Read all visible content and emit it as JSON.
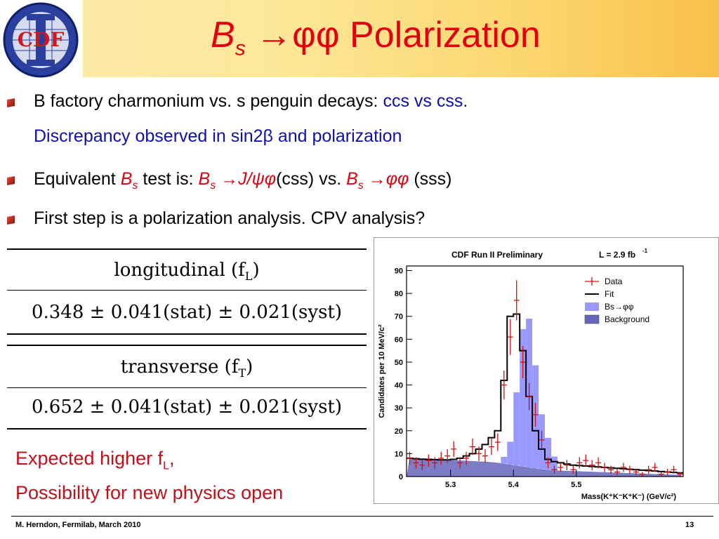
{
  "slide": {
    "title": {
      "B": "B",
      "sub": "s",
      "arrow": "→",
      "phiphi": "φφ",
      "word": "Polarization"
    },
    "bullets": [
      {
        "main": "B factory charmonium vs. s penguin decays: ",
        "highlight": "ccs vs css.",
        "line2": "Discrepancy observed in sin2β and polarization"
      },
      {
        "pre": "Equivalent ",
        "B1": "B",
        "s1": "s",
        "mid": " test is: ",
        "B2": "B",
        "s2": "s",
        "decay1": " →J/ψφ",
        "css": "(css)  vs. ",
        "B3": "B",
        "s3": "s",
        "decay2": " →φφ",
        "sss": " (sss)"
      },
      {
        "main": "First step is a polarization analysis.  CPV analysis?"
      }
    ],
    "tables": [
      {
        "header": "longitudinal (f",
        "header_sub": "L",
        "header_close": ")",
        "value": "0.348 ± 0.041(stat) ± 0.021(syst)"
      },
      {
        "header": "transverse (f",
        "header_sub": "T",
        "header_close": ")",
        "value": "0.652 ± 0.041(stat) ± 0.021(syst)"
      }
    ],
    "conclusion": {
      "line1": "Expected higher f",
      "line1_sub": "L",
      "line1_end": ",",
      "line2": "Possibility for new physics open"
    },
    "footer": {
      "left": "M. Herndon,  Fermilab,  March 2010",
      "page": "13"
    },
    "logo_text": "CDF"
  },
  "chart_data": {
    "type": "histogram",
    "title": "CDF Run II Preliminary",
    "lumi": "L = 2.9 fb",
    "lumi_sup": "-1",
    "xlabel": "Mass(K⁺K⁻K⁺K⁻) (GeV/c²)",
    "ylabel": "Candidates per 10 MeV/c²",
    "xlim": [
      5.23,
      5.67
    ],
    "ylim": [
      0,
      92
    ],
    "xticks": [
      "5.3",
      "5.4",
      "5.5"
    ],
    "yticks": [
      "0",
      "10",
      "20",
      "30",
      "40",
      "50",
      "60",
      "70",
      "80",
      "90"
    ],
    "legend": [
      "Data",
      "Fit",
      "Bs→φφ",
      "Background"
    ],
    "legend_placement": "top-right",
    "bin_edges": [
      5.23,
      5.24,
      5.25,
      5.26,
      5.27,
      5.28,
      5.29,
      5.3,
      5.31,
      5.32,
      5.33,
      5.34,
      5.35,
      5.36,
      5.37,
      5.38,
      5.39,
      5.4,
      5.41,
      5.42,
      5.43,
      5.44,
      5.45,
      5.46,
      5.47,
      5.48,
      5.49,
      5.5,
      5.51,
      5.52,
      5.53,
      5.54,
      5.55,
      5.56,
      5.57,
      5.58,
      5.59,
      5.6,
      5.61,
      5.62,
      5.63,
      5.64,
      5.65,
      5.66,
      5.67
    ],
    "data": [
      8,
      6,
      5,
      7,
      6,
      8,
      9,
      12,
      6,
      8,
      13,
      10,
      9,
      13,
      15,
      40,
      61,
      77,
      50,
      35,
      27,
      16,
      6,
      3,
      4,
      5,
      3,
      6,
      7,
      5,
      6,
      4,
      3,
      2,
      4,
      3,
      2,
      1,
      3,
      4,
      1,
      2,
      3,
      1
    ],
    "fit": [
      8,
      7.8,
      7.6,
      7.5,
      7.4,
      7.3,
      7.3,
      7.5,
      8,
      9,
      10,
      12,
      14,
      17,
      20,
      42,
      70,
      71,
      55,
      35,
      20,
      12,
      7.5,
      6.5,
      6,
      5.5,
      5,
      4.8,
      4.6,
      4.4,
      4.2,
      4,
      3.8,
      3.6,
      3.4,
      3.2,
      3,
      2.8,
      2.6,
      2.4,
      2.2,
      2,
      1.8,
      1.6
    ],
    "signal": [
      0,
      0,
      0,
      0,
      0,
      0,
      0,
      0,
      0,
      0,
      0,
      0,
      0,
      0,
      0,
      3,
      10,
      32,
      60,
      65,
      45,
      24,
      14,
      6,
      0,
      0,
      0,
      0,
      0,
      0,
      0,
      0,
      0,
      0,
      0,
      0,
      0,
      0,
      0,
      0,
      0,
      0,
      0,
      0
    ],
    "background": [
      8,
      7.8,
      7.6,
      7.5,
      7.4,
      7.3,
      7.2,
      7.1,
      7,
      6.9,
      6.8,
      6.6,
      6.5,
      6.3,
      6,
      5.6,
      5.2,
      4.8,
      4.4,
      4.0,
      3.6,
      3.2,
      2.9,
      2.7,
      2.6,
      2.5,
      2.4,
      2.3,
      2.2,
      2.1,
      2.0,
      1.9,
      1.8,
      1.7,
      1.6,
      1.5,
      1.4,
      1.3,
      1.2,
      1.1,
      1.0,
      0.9,
      0.8,
      0.7
    ],
    "colors": {
      "data": "#d01010",
      "fit": "#000000",
      "signal": "#9999ff",
      "background": "#6666bb"
    }
  }
}
